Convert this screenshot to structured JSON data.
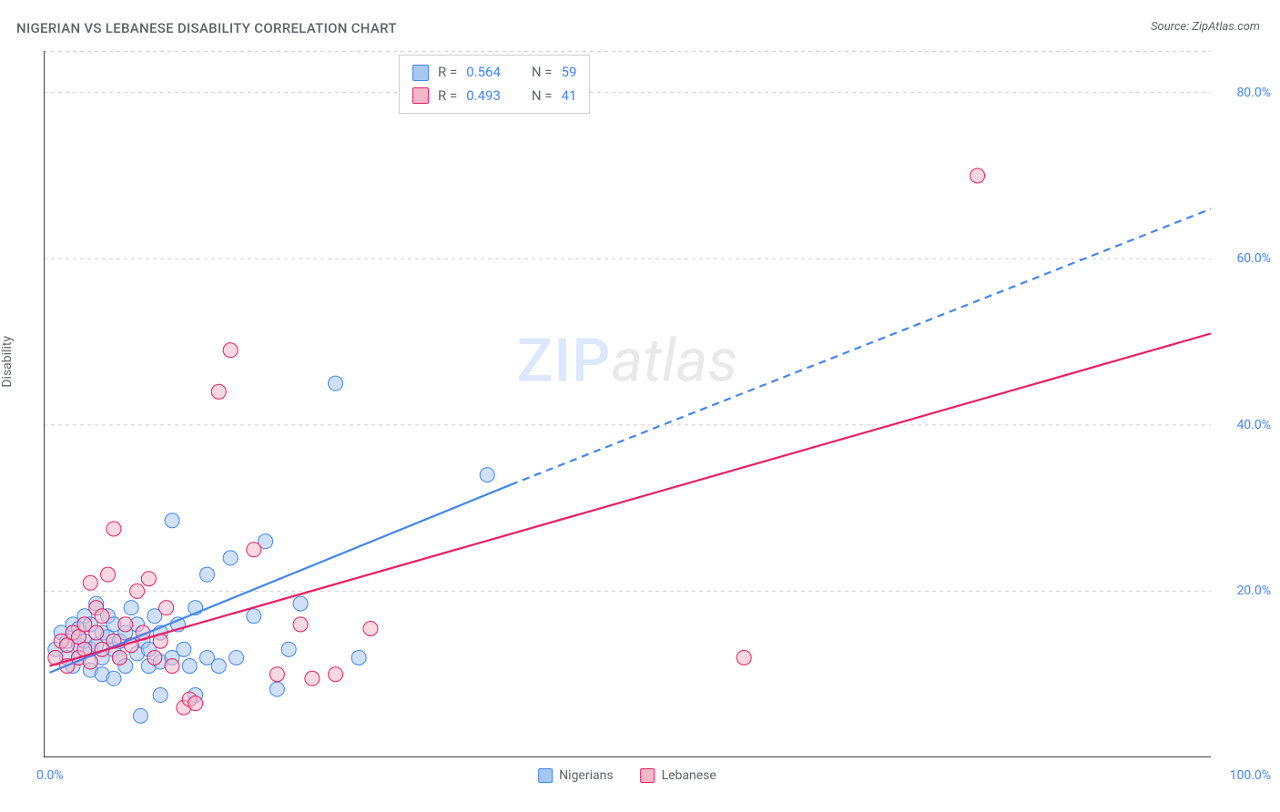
{
  "title": "NIGERIAN VS LEBANESE DISABILITY CORRELATION CHART",
  "source_label": "Source: ZipAtlas.com",
  "y_axis_label": "Disability",
  "watermark": {
    "part1": "ZIP",
    "part2": "atlas"
  },
  "chart": {
    "type": "scatter",
    "background_color": "#ffffff",
    "grid_color": "#d0d0d0",
    "axis_color": "#000000",
    "xlim": [
      0,
      100
    ],
    "ylim": [
      0,
      85
    ],
    "x_ticks": [
      0,
      10,
      20,
      30,
      45,
      60,
      80,
      100
    ],
    "y_gridlines": [
      20,
      40,
      60,
      80
    ],
    "y_tick_labels": [
      {
        "v": 20,
        "label": "20.0%"
      },
      {
        "v": 40,
        "label": "40.0%"
      },
      {
        "v": 60,
        "label": "60.0%"
      },
      {
        "v": 80,
        "label": "80.0%"
      }
    ],
    "x_left_label": "0.0%",
    "x_right_label": "100.0%",
    "marker_radius": 8,
    "marker_opacity": 0.55,
    "series": [
      {
        "key": "nigerians",
        "label": "Nigerians",
        "fill": "#a8c7f0",
        "stroke": "#4285f4",
        "trend": {
          "solid": {
            "x1": 0.5,
            "y1": 10.2,
            "x2": 40,
            "y2": 32.8
          },
          "dashed": {
            "x1": 40,
            "y1": 32.8,
            "x2": 100,
            "y2": 66
          },
          "width": 2.2
        },
        "stats": {
          "R": "0.564",
          "N": "59"
        },
        "points": [
          [
            1,
            13
          ],
          [
            1.5,
            15
          ],
          [
            2,
            12
          ],
          [
            2,
            14
          ],
          [
            2.5,
            16
          ],
          [
            2.5,
            11
          ],
          [
            3,
            13.5
          ],
          [
            3,
            15.5
          ],
          [
            3,
            12
          ],
          [
            3.5,
            17
          ],
          [
            3.5,
            14
          ],
          [
            4,
            10.5
          ],
          [
            4,
            13
          ],
          [
            4,
            16
          ],
          [
            4.5,
            18.5
          ],
          [
            4.5,
            13.5
          ],
          [
            5,
            15
          ],
          [
            5,
            12
          ],
          [
            5,
            10
          ],
          [
            5.5,
            17
          ],
          [
            5.5,
            14.5
          ],
          [
            6,
            13
          ],
          [
            6,
            9.5
          ],
          [
            6,
            16
          ],
          [
            6.5,
            12
          ],
          [
            6.5,
            14
          ],
          [
            7,
            11
          ],
          [
            7,
            15
          ],
          [
            7.5,
            18
          ],
          [
            8,
            12.5
          ],
          [
            8,
            16
          ],
          [
            8.3,
            5
          ],
          [
            8.5,
            14
          ],
          [
            9,
            11
          ],
          [
            9,
            13
          ],
          [
            9.5,
            17
          ],
          [
            10,
            15
          ],
          [
            10,
            11.5
          ],
          [
            10,
            7.5
          ],
          [
            11,
            28.5
          ],
          [
            11,
            12
          ],
          [
            11.5,
            16
          ],
          [
            12,
            13
          ],
          [
            12.5,
            11
          ],
          [
            13,
            18
          ],
          [
            13,
            7.5
          ],
          [
            14,
            12
          ],
          [
            14,
            22
          ],
          [
            15,
            11
          ],
          [
            16,
            24
          ],
          [
            16.5,
            12
          ],
          [
            18,
            17
          ],
          [
            19,
            26
          ],
          [
            20,
            8.2
          ],
          [
            21,
            13
          ],
          [
            22,
            18.5
          ],
          [
            25,
            45
          ],
          [
            27,
            12
          ],
          [
            38,
            34
          ]
        ]
      },
      {
        "key": "lebanese",
        "label": "Lebanese",
        "fill": "#f5b8c9",
        "stroke": "#e91e63",
        "trend": {
          "solid": {
            "x1": 0.5,
            "y1": 11.0,
            "x2": 100,
            "y2": 51
          },
          "dashed": null,
          "width": 2.2
        },
        "stats": {
          "R": "0.493",
          "N": "41"
        },
        "points": [
          [
            1,
            12
          ],
          [
            1.5,
            14
          ],
          [
            2,
            11
          ],
          [
            2,
            13.5
          ],
          [
            2.5,
            15
          ],
          [
            3,
            12
          ],
          [
            3,
            14.5
          ],
          [
            3.5,
            16
          ],
          [
            3.5,
            13
          ],
          [
            4,
            11.5
          ],
          [
            4,
            21
          ],
          [
            4.5,
            15
          ],
          [
            4.5,
            18
          ],
          [
            5,
            13
          ],
          [
            5,
            17
          ],
          [
            5.5,
            22
          ],
          [
            6,
            14
          ],
          [
            6,
            27.5
          ],
          [
            6.5,
            12
          ],
          [
            7,
            16
          ],
          [
            7.5,
            13.5
          ],
          [
            8,
            20
          ],
          [
            8.5,
            15
          ],
          [
            9,
            21.5
          ],
          [
            9.5,
            12
          ],
          [
            10,
            14
          ],
          [
            10.5,
            18
          ],
          [
            11,
            11
          ],
          [
            12,
            6
          ],
          [
            12.5,
            7
          ],
          [
            13,
            6.5
          ],
          [
            15,
            44
          ],
          [
            16,
            49
          ],
          [
            18,
            25
          ],
          [
            20,
            10
          ],
          [
            22,
            16
          ],
          [
            23,
            9.5
          ],
          [
            25,
            10
          ],
          [
            28,
            15.5
          ],
          [
            60,
            12
          ],
          [
            80,
            70
          ]
        ]
      }
    ],
    "bottom_legend": [
      {
        "label": "Nigerians",
        "fill": "#a8c7f0",
        "stroke": "#4285f4"
      },
      {
        "label": "Lebanese",
        "fill": "#f5b8c9",
        "stroke": "#e91e63"
      }
    ],
    "label_color": "#4285f4",
    "text_color": "#5f6368",
    "title_fontsize": 15,
    "tick_fontsize": 14
  }
}
